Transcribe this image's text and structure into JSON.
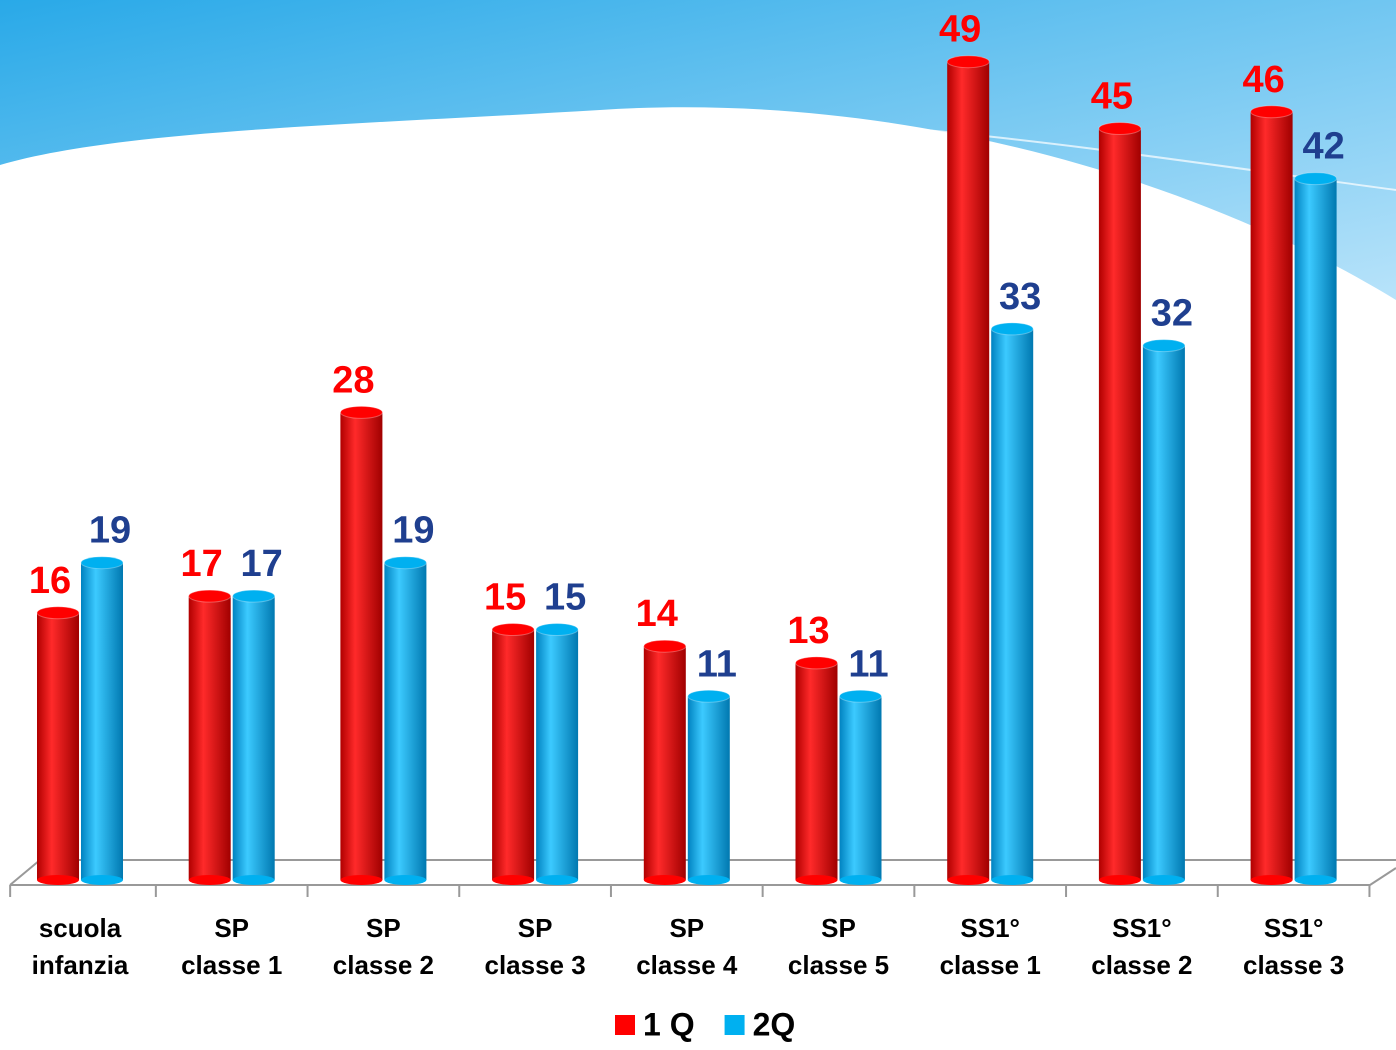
{
  "chart_data": {
    "type": "bar",
    "categories": [
      "scuola\ninfanzia",
      "SP\nclasse 1",
      "SP\nclasse 2",
      "SP\nclasse 3",
      "SP\nclasse 4",
      "SP\nclasse 5",
      "SS1°\nclasse 1",
      "SS1°\nclasse 2",
      "SS1°\nclasse 3"
    ],
    "series": [
      {
        "name": "1 Q",
        "color": "#ff0000",
        "label_color": "#ff0000",
        "values": [
          16,
          17,
          28,
          15,
          14,
          13,
          49,
          45,
          46
        ]
      },
      {
        "name": "2Q",
        "color": "#00b0f0",
        "label_color": "#1f3f8f",
        "values": [
          19,
          17,
          19,
          15,
          11,
          11,
          33,
          32,
          42
        ]
      }
    ],
    "ylim": [
      0,
      50
    ],
    "legend": "bottom"
  }
}
